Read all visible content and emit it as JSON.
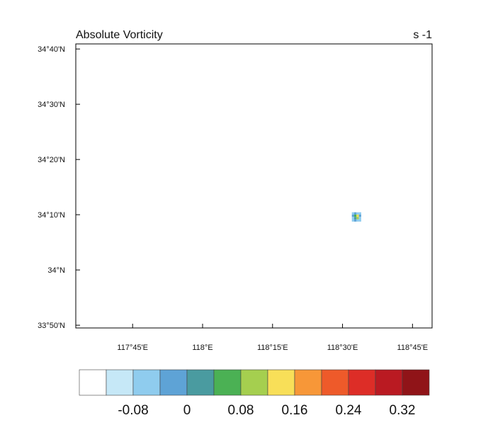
{
  "chart_data": {
    "type": "heatmap",
    "title": "Absolute Vorticity",
    "units": "s -1",
    "xlim": [
      117.547,
      118.82
    ],
    "ylim": [
      33.825,
      34.682
    ],
    "x_ticks": [
      {
        "value": 117.75,
        "label": "117°45'E"
      },
      {
        "value": 118.0,
        "label": "118°E"
      },
      {
        "value": 118.25,
        "label": "118°15'E"
      },
      {
        "value": 118.5,
        "label": "118°30'E"
      },
      {
        "value": 118.75,
        "label": "118°45'E"
      }
    ],
    "y_ticks": [
      {
        "value": 34.6667,
        "label": "34°40'N"
      },
      {
        "value": 34.5,
        "label": "34°30'N"
      },
      {
        "value": 34.3333,
        "label": "34°20'N"
      },
      {
        "value": 34.1667,
        "label": "34°10'N"
      },
      {
        "value": 34.0,
        "label": "34°N"
      },
      {
        "value": 33.8333,
        "label": "33°50'N"
      }
    ],
    "field_patch": {
      "center_lon": 118.55,
      "center_lat": 34.16,
      "values": [
        [
          -0.06,
          -0.02,
          -0.06,
          -0.06
        ],
        [
          -0.02,
          0.06,
          0.14,
          -0.02
        ],
        [
          -0.06,
          0.02,
          0.1,
          -0.06
        ],
        [
          -0.06,
          -0.02,
          -0.06,
          -0.06
        ]
      ]
    },
    "colorbar": {
      "levels": [
        -0.12,
        -0.08,
        -0.04,
        0,
        0.04,
        0.08,
        0.12,
        0.16,
        0.2,
        0.24,
        0.28,
        0.32
      ],
      "colors": [
        "#ffffff",
        "#c6e8f7",
        "#8fccee",
        "#5ea3d6",
        "#4a9ba0",
        "#4bb154",
        "#a5cf4f",
        "#f8df58",
        "#f79738",
        "#ee5a2a",
        "#dd2d27",
        "#ba1a22",
        "#901418"
      ],
      "labels": [
        {
          "level": -0.08,
          "label": "-0.08"
        },
        {
          "level": 0,
          "label": "0"
        },
        {
          "level": 0.08,
          "label": "0.08"
        },
        {
          "level": 0.16,
          "label": "0.16"
        },
        {
          "level": 0.24,
          "label": "0.24"
        },
        {
          "level": 0.32,
          "label": "0.32"
        }
      ]
    }
  }
}
